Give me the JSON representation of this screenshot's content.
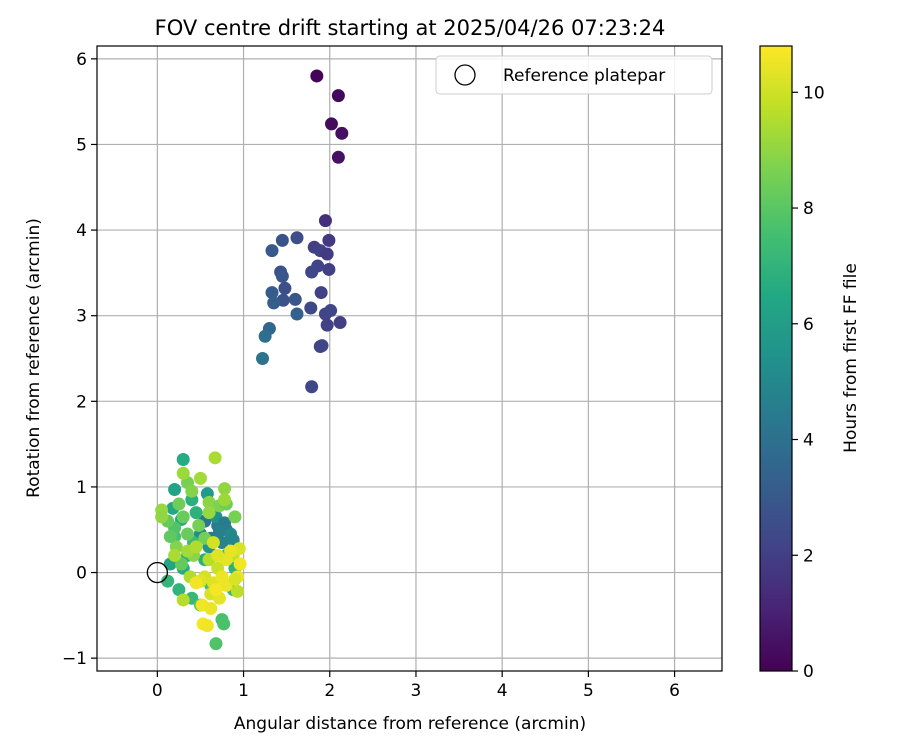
{
  "chart_data": {
    "type": "scatter",
    "title": "FOV centre drift starting at 2025/04/26 07:23:24",
    "xlabel": "Angular distance from reference (arcmin)",
    "ylabel": "Rotation from reference (arcmin)",
    "xlim": [
      -0.7,
      6.55
    ],
    "ylim": [
      -1.15,
      6.15
    ],
    "xticks": [
      0,
      1,
      2,
      3,
      4,
      5,
      6
    ],
    "yticks": [
      -1,
      0,
      1,
      2,
      3,
      4,
      5,
      6
    ],
    "grid": true,
    "legend": {
      "placement": "top-right",
      "entries": [
        "Reference platepar"
      ]
    },
    "reference_point": {
      "x": 0,
      "y": 0,
      "label": "Reference platepar"
    },
    "colorbar": {
      "label": "Hours from first FF file",
      "range": [
        0,
        10.8
      ],
      "ticks": [
        0,
        2,
        4,
        6,
        8,
        10
      ],
      "colormap": "viridis"
    },
    "series": [
      {
        "name": "",
        "points": [
          {
            "x": 1.85,
            "y": 5.8,
            "c": 0.1
          },
          {
            "x": 2.1,
            "y": 5.57,
            "c": 0.2
          },
          {
            "x": 2.02,
            "y": 5.24,
            "c": 0.3
          },
          {
            "x": 2.14,
            "y": 5.13,
            "c": 0.4
          },
          {
            "x": 2.1,
            "y": 4.85,
            "c": 0.5
          },
          {
            "x": 1.95,
            "y": 4.11,
            "c": 1.5
          },
          {
            "x": 1.99,
            "y": 3.88,
            "c": 1.8
          },
          {
            "x": 1.82,
            "y": 3.8,
            "c": 2.0
          },
          {
            "x": 1.89,
            "y": 3.76,
            "c": 2.1
          },
          {
            "x": 1.97,
            "y": 3.72,
            "c": 1.9
          },
          {
            "x": 1.86,
            "y": 3.58,
            "c": 2.2
          },
          {
            "x": 1.99,
            "y": 3.54,
            "c": 2.0
          },
          {
            "x": 1.79,
            "y": 3.51,
            "c": 2.3
          },
          {
            "x": 1.9,
            "y": 3.27,
            "c": 2.1
          },
          {
            "x": 1.78,
            "y": 3.09,
            "c": 2.4
          },
          {
            "x": 1.95,
            "y": 3.02,
            "c": 2.2
          },
          {
            "x": 2.01,
            "y": 3.06,
            "c": 2.3
          },
          {
            "x": 1.97,
            "y": 2.89,
            "c": 2.1
          },
          {
            "x": 2.12,
            "y": 2.92,
            "c": 2.0
          },
          {
            "x": 1.91,
            "y": 2.65,
            "c": 2.5
          },
          {
            "x": 1.89,
            "y": 2.64,
            "c": 2.2
          },
          {
            "x": 1.79,
            "y": 2.17,
            "c": 2.3
          },
          {
            "x": 1.62,
            "y": 3.91,
            "c": 2.6
          },
          {
            "x": 1.45,
            "y": 3.88,
            "c": 2.8
          },
          {
            "x": 1.33,
            "y": 3.76,
            "c": 3.0
          },
          {
            "x": 1.43,
            "y": 3.51,
            "c": 2.7
          },
          {
            "x": 1.45,
            "y": 3.46,
            "c": 2.9
          },
          {
            "x": 1.48,
            "y": 3.32,
            "c": 2.6
          },
          {
            "x": 1.33,
            "y": 3.27,
            "c": 3.1
          },
          {
            "x": 1.46,
            "y": 3.18,
            "c": 2.8
          },
          {
            "x": 1.6,
            "y": 3.19,
            "c": 2.9
          },
          {
            "x": 1.35,
            "y": 3.15,
            "c": 3.2
          },
          {
            "x": 1.62,
            "y": 3.02,
            "c": 3.3
          },
          {
            "x": 1.3,
            "y": 2.85,
            "c": 3.6
          },
          {
            "x": 1.25,
            "y": 2.76,
            "c": 3.9
          },
          {
            "x": 1.22,
            "y": 2.5,
            "c": 4.1
          },
          {
            "x": 0.55,
            "y": 0.6,
            "c": 4.2
          },
          {
            "x": 0.7,
            "y": 0.55,
            "c": 4.4
          },
          {
            "x": 0.8,
            "y": 0.5,
            "c": 4.6
          },
          {
            "x": 0.62,
            "y": 0.4,
            "c": 4.3
          },
          {
            "x": 0.75,
            "y": 0.35,
            "c": 4.8
          },
          {
            "x": 0.85,
            "y": 0.45,
            "c": 5.0
          },
          {
            "x": 0.5,
            "y": 0.45,
            "c": 5.2
          },
          {
            "x": 0.68,
            "y": 0.65,
            "c": 5.4
          },
          {
            "x": 0.78,
            "y": 0.58,
            "c": 4.5
          },
          {
            "x": 0.6,
            "y": 0.3,
            "c": 5.6
          },
          {
            "x": 0.88,
            "y": 0.38,
            "c": 4.9
          },
          {
            "x": 0.72,
            "y": 0.48,
            "c": 4.7
          },
          {
            "x": 0.58,
            "y": 0.92,
            "c": 5.8
          },
          {
            "x": 0.2,
            "y": 0.97,
            "c": 6.2
          },
          {
            "x": 0.3,
            "y": 1.32,
            "c": 6.6
          },
          {
            "x": 0.18,
            "y": 0.75,
            "c": 6.4
          },
          {
            "x": 0.4,
            "y": 0.85,
            "c": 6.8
          },
          {
            "x": 0.28,
            "y": 0.62,
            "c": 6.5
          },
          {
            "x": 0.45,
            "y": 0.7,
            "c": 6.9
          },
          {
            "x": 0.35,
            "y": 0.2,
            "c": 6.7
          },
          {
            "x": 0.15,
            "y": 0.1,
            "c": 6.3
          },
          {
            "x": 0.25,
            "y": -0.2,
            "c": 7.0
          },
          {
            "x": 0.4,
            "y": -0.3,
            "c": 7.2
          },
          {
            "x": 0.12,
            "y": -0.1,
            "c": 7.1
          },
          {
            "x": 0.3,
            "y": 0.05,
            "c": 6.6
          },
          {
            "x": 0.5,
            "y": -0.1,
            "c": 7.4
          },
          {
            "x": 0.55,
            "y": 0.15,
            "c": 6.8
          },
          {
            "x": 0.62,
            "y": -0.15,
            "c": 7.5
          },
          {
            "x": 0.88,
            "y": -0.2,
            "c": 7.3
          },
          {
            "x": 0.9,
            "y": 0.05,
            "c": 6.9
          },
          {
            "x": 0.75,
            "y": -0.55,
            "c": 7.6
          },
          {
            "x": 0.77,
            "y": -0.6,
            "c": 7.7
          },
          {
            "x": 0.68,
            "y": -0.83,
            "c": 7.8
          },
          {
            "x": 0.5,
            "y": -0.38,
            "c": 7.9
          },
          {
            "x": 0.2,
            "y": 0.42,
            "c": 7.6
          },
          {
            "x": 0.42,
            "y": 0.35,
            "c": 7.3
          },
          {
            "x": 0.8,
            "y": 0.2,
            "c": 7.0
          },
          {
            "x": 0.2,
            "y": 0.52,
            "c": 7.8
          },
          {
            "x": 0.12,
            "y": 0.6,
            "c": 8.2
          },
          {
            "x": 0.25,
            "y": 0.8,
            "c": 8.4
          },
          {
            "x": 0.35,
            "y": 1.05,
            "c": 8.6
          },
          {
            "x": 0.4,
            "y": 0.95,
            "c": 8.8
          },
          {
            "x": 0.3,
            "y": 0.65,
            "c": 8.3
          },
          {
            "x": 0.48,
            "y": 0.55,
            "c": 8.5
          },
          {
            "x": 0.6,
            "y": 0.82,
            "c": 8.9
          },
          {
            "x": 0.72,
            "y": 0.78,
            "c": 8.7
          },
          {
            "x": 0.8,
            "y": 0.8,
            "c": 8.4
          },
          {
            "x": 0.9,
            "y": 0.65,
            "c": 8.6
          },
          {
            "x": 0.22,
            "y": 0.3,
            "c": 8.8
          },
          {
            "x": 0.35,
            "y": 0.45,
            "c": 8.3
          },
          {
            "x": 0.15,
            "y": 0.42,
            "c": 8.1
          },
          {
            "x": 0.42,
            "y": 0.2,
            "c": 8.9
          },
          {
            "x": 0.55,
            "y": 0.4,
            "c": 8.5
          },
          {
            "x": 0.28,
            "y": 0.1,
            "c": 8.2
          },
          {
            "x": 0.05,
            "y": 0.73,
            "c": 9.1
          },
          {
            "x": 0.05,
            "y": 0.65,
            "c": 9.0
          },
          {
            "x": 0.3,
            "y": 1.16,
            "c": 9.2
          },
          {
            "x": 0.5,
            "y": 1.1,
            "c": 9.3
          },
          {
            "x": 0.67,
            "y": 1.34,
            "c": 9.4
          },
          {
            "x": 0.6,
            "y": 0.7,
            "c": 9.1
          },
          {
            "x": 0.78,
            "y": 0.98,
            "c": 9.0
          },
          {
            "x": 0.78,
            "y": 0.85,
            "c": 9.2
          },
          {
            "x": 0.35,
            "y": 0.25,
            "c": 9.3
          },
          {
            "x": 0.45,
            "y": 0.3,
            "c": 9.5
          },
          {
            "x": 0.2,
            "y": 0.2,
            "c": 9.4
          },
          {
            "x": 0.6,
            "y": 0.15,
            "c": 9.6
          },
          {
            "x": 0.38,
            "y": -0.05,
            "c": 9.5
          },
          {
            "x": 0.3,
            "y": -0.32,
            "c": 9.6
          },
          {
            "x": 0.88,
            "y": 0.2,
            "c": 9.8
          },
          {
            "x": 0.93,
            "y": -0.22,
            "c": 9.7
          },
          {
            "x": 0.7,
            "y": 0.05,
            "c": 9.9
          },
          {
            "x": 0.55,
            "y": -0.05,
            "c": 10.1
          },
          {
            "x": 0.65,
            "y": -0.12,
            "c": 10.3
          },
          {
            "x": 0.75,
            "y": -0.05,
            "c": 10.5
          },
          {
            "x": 0.62,
            "y": -0.25,
            "c": 10.2
          },
          {
            "x": 0.72,
            "y": -0.3,
            "c": 10.4
          },
          {
            "x": 0.52,
            "y": -0.38,
            "c": 10.6
          },
          {
            "x": 0.62,
            "y": -0.42,
            "c": 10.5
          },
          {
            "x": 0.53,
            "y": -0.6,
            "c": 10.7
          },
          {
            "x": 0.58,
            "y": -0.62,
            "c": 10.6
          },
          {
            "x": 0.5,
            "y": -0.1,
            "c": 10.3
          },
          {
            "x": 0.8,
            "y": 0.15,
            "c": 10.4
          },
          {
            "x": 0.96,
            "y": 0.1,
            "c": 10.6
          },
          {
            "x": 0.93,
            "y": -0.05,
            "c": 10.5
          },
          {
            "x": 0.95,
            "y": 0.28,
            "c": 10.2
          },
          {
            "x": 0.85,
            "y": 0.25,
            "c": 10.4
          },
          {
            "x": 0.7,
            "y": 0.2,
            "c": 10.3
          },
          {
            "x": 0.65,
            "y": 0.35,
            "c": 10.1
          },
          {
            "x": 0.8,
            "y": -0.15,
            "c": 10.5
          },
          {
            "x": 0.68,
            "y": -0.2,
            "c": 10.7
          },
          {
            "x": 0.45,
            "y": -0.12,
            "c": 10.6
          },
          {
            "x": 0.9,
            "y": -0.08,
            "c": 10.2
          }
        ]
      }
    ]
  }
}
